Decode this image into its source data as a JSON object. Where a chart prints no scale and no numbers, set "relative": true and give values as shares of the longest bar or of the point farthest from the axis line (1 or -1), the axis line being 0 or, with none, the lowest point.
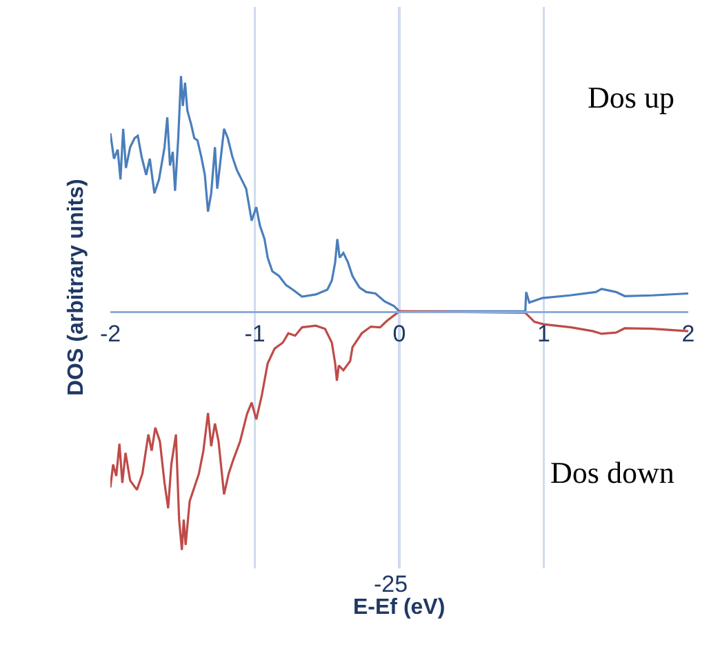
{
  "chart_data": {
    "type": "line",
    "relative": true,
    "xlabel": "E-Ef (eV)",
    "ylabel": "DOS (arbitrary units)",
    "xlim": [
      -2,
      2
    ],
    "xticks": [
      -2,
      -1,
      0,
      1,
      2
    ],
    "grid": "x",
    "ref_lines": [
      {
        "axis": "x",
        "value": 0,
        "color": "#8eaadb"
      }
    ],
    "line_style": "solid",
    "marker": "none",
    "annotations": [
      "Dos up",
      "Dos down",
      "-25"
    ],
    "series": [
      {
        "color": "#4a7ebb",
        "x": [
          -2,
          -1.975,
          -1.949,
          -1.93,
          -1.911,
          -1.892,
          -1.863,
          -1.832,
          -1.81,
          -1.784,
          -1.752,
          -1.727,
          -1.695,
          -1.663,
          -1.625,
          -1.606,
          -1.587,
          -1.568,
          -1.552,
          -1.53,
          -1.511,
          -1.498,
          -1.483,
          -1.467,
          -1.441,
          -1.419,
          -1.397,
          -1.371,
          -1.346,
          -1.324,
          -1.302,
          -1.276,
          -1.26,
          -1.238,
          -1.213,
          -1.187,
          -1.156,
          -1.124,
          -1.092,
          -1.06,
          -1.022,
          -0.99,
          -0.965,
          -0.933,
          -0.911,
          -0.879,
          -0.832,
          -0.784,
          -0.737,
          -0.673,
          -0.578,
          -0.498,
          -0.467,
          -0.444,
          -0.429,
          -0.413,
          -0.387,
          -0.356,
          -0.324,
          -0.276,
          -0.229,
          -0.165,
          -0.102,
          -0.038,
          0,
          0.872,
          0.878,
          0.9,
          0.99,
          1.18,
          1.36,
          1.4,
          1.5,
          1.56,
          1.75,
          2
        ],
        "values": [
          0.746,
          0.64,
          0.678,
          0.553,
          0.765,
          0.601,
          0.688,
          0.726,
          0.736,
          0.649,
          0.572,
          0.64,
          0.495,
          0.553,
          0.688,
          0.813,
          0.611,
          0.669,
          0.505,
          0.726,
          0.986,
          0.861,
          0.958,
          0.842,
          0.784,
          0.726,
          0.717,
          0.649,
          0.572,
          0.418,
          0.495,
          0.688,
          0.514,
          0.63,
          0.765,
          0.726,
          0.649,
          0.592,
          0.553,
          0.514,
          0.38,
          0.437,
          0.36,
          0.303,
          0.225,
          0.168,
          0.148,
          0.11,
          0.091,
          0.062,
          0.071,
          0.091,
          0.129,
          0.206,
          0.303,
          0.225,
          0.245,
          0.206,
          0.148,
          0.1,
          0.081,
          0.075,
          0.042,
          0.023,
          0,
          0,
          0.081,
          0.037,
          0.056,
          0.067,
          0.081,
          0.094,
          0.081,
          0.064,
          0.067,
          0.075
        ]
      },
      {
        "color": "#be4b48",
        "x": [
          -2,
          -1.981,
          -1.959,
          -1.937,
          -1.917,
          -1.895,
          -1.863,
          -1.816,
          -1.778,
          -1.737,
          -1.714,
          -1.689,
          -1.657,
          -1.625,
          -1.6,
          -1.578,
          -1.546,
          -1.524,
          -1.505,
          -1.492,
          -1.479,
          -1.451,
          -1.419,
          -1.387,
          -1.356,
          -1.324,
          -1.302,
          -1.276,
          -1.251,
          -1.213,
          -1.181,
          -1.149,
          -1.102,
          -1.054,
          -1.022,
          -0.99,
          -0.952,
          -0.911,
          -0.863,
          -0.806,
          -0.768,
          -0.721,
          -0.673,
          -0.578,
          -0.514,
          -0.467,
          -0.444,
          -0.432,
          -0.419,
          -0.387,
          -0.34,
          -0.324,
          -0.26,
          -0.197,
          -0.133,
          -0.086,
          0,
          0.872,
          0.935,
          0.998,
          1.19,
          1.34,
          1.4,
          1.5,
          1.56,
          1.75,
          2
        ],
        "values": [
          -0.738,
          -0.642,
          -0.69,
          -0.555,
          -0.719,
          -0.593,
          -0.709,
          -0.748,
          -0.68,
          -0.516,
          -0.584,
          -0.487,
          -0.545,
          -0.719,
          -0.825,
          -0.642,
          -0.516,
          -0.873,
          -1,
          -0.873,
          -0.979,
          -0.796,
          -0.738,
          -0.68,
          -0.584,
          -0.426,
          -0.565,
          -0.47,
          -0.545,
          -0.767,
          -0.68,
          -0.622,
          -0.545,
          -0.43,
          -0.382,
          -0.453,
          -0.353,
          -0.218,
          -0.156,
          -0.131,
          -0.092,
          -0.102,
          -0.067,
          -0.06,
          -0.073,
          -0.131,
          -0.218,
          -0.291,
          -0.227,
          -0.247,
          -0.208,
          -0.15,
          -0.092,
          -0.064,
          -0.067,
          -0.04,
          0,
          -0.006,
          -0.044,
          -0.054,
          -0.067,
          -0.083,
          -0.094,
          -0.089,
          -0.071,
          -0.073,
          -0.083
        ]
      }
    ]
  }
}
